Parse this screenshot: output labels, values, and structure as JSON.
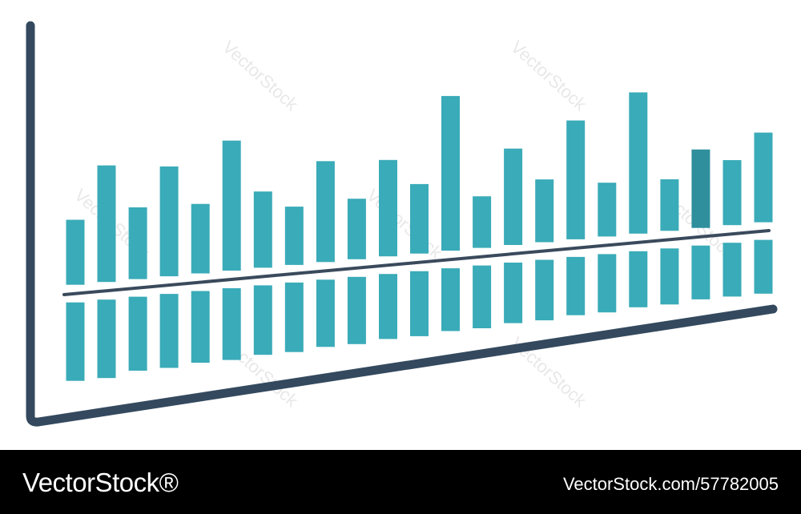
{
  "chart_data": {
    "type": "bar",
    "title": "",
    "xlabel": "",
    "ylabel": "",
    "bar_color": "#3aabb8",
    "highlight_color": "#2f8f9c",
    "axis_color": "#34495e",
    "baseline_color": "#3a4a5c",
    "highlight_index": 20,
    "upper_values": [
      2.9,
      5.2,
      3.2,
      4.9,
      3.1,
      5.8,
      3.4,
      2.6,
      4.5,
      2.7,
      4.3,
      3.1,
      6.9,
      2.3,
      4.3,
      2.8,
      5.3,
      2.4,
      6.3,
      2.3,
      3.5,
      2.9,
      4.0
    ],
    "lower_values": [
      3.5,
      3.5,
      3.3,
      3.3,
      3.2,
      3.2,
      3.1,
      3.1,
      3.0,
      3.0,
      2.9,
      2.9,
      2.8,
      2.8,
      2.7,
      2.7,
      2.6,
      2.6,
      2.5,
      2.5,
      2.4,
      2.4,
      2.4
    ]
  },
  "watermark": {
    "text": "VectorStock",
    "color": "#d7d7d7"
  },
  "footer": {
    "brand": "VectorStock®",
    "image_id": "VectorStock.com/57782005"
  }
}
